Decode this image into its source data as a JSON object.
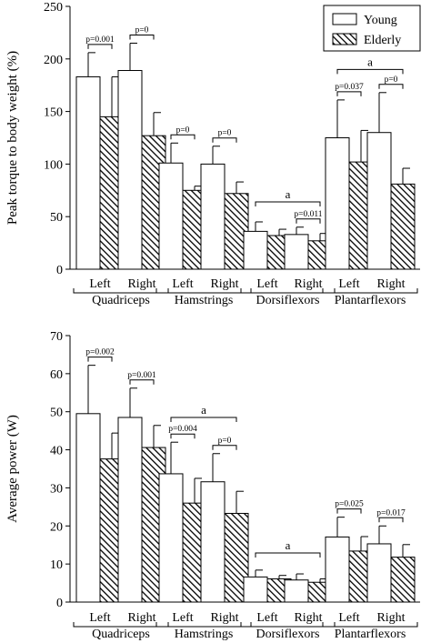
{
  "colors": {
    "young_fill": "#ffffff",
    "elderly_hatch": "#000000",
    "axis": "#000000"
  },
  "legend": {
    "items": [
      {
        "label": "Young",
        "style": "open"
      },
      {
        "label": "Elderly",
        "style": "hatched"
      }
    ],
    "placement": "top-right"
  },
  "chart_data": [
    {
      "type": "bar",
      "title": "",
      "ylabel": "Peak torque to body weight (%)",
      "xlabel": "",
      "ylim": [
        0,
        250
      ],
      "yticks": [
        0,
        50,
        100,
        150,
        200,
        250
      ],
      "groups": [
        {
          "name": "Quadriceps",
          "sides": [
            "Left",
            "Right"
          ]
        },
        {
          "name": "Hamstrings",
          "sides": [
            "Left",
            "Right"
          ]
        },
        {
          "name": "Dorsiflexors",
          "sides": [
            "Left",
            "Right"
          ]
        },
        {
          "name": "Plantarflexors",
          "sides": [
            "Left",
            "Right"
          ]
        }
      ],
      "series": [
        {
          "name": "Young",
          "values": [
            183,
            189,
            101,
            100,
            36,
            33,
            125,
            130
          ],
          "errors": [
            23,
            26,
            19,
            17,
            9,
            7,
            36,
            38
          ]
        },
        {
          "name": "Elderly",
          "values": [
            145,
            127,
            75,
            72,
            32,
            27,
            102,
            81
          ],
          "errors": [
            38,
            22,
            4,
            11,
            6,
            7,
            30,
            15
          ]
        }
      ],
      "pvalues": [
        {
          "index": 0,
          "label": "p=0.001"
        },
        {
          "index": 1,
          "label": "p=0"
        },
        {
          "index": 2,
          "label": "p=0"
        },
        {
          "index": 3,
          "label": "p=0"
        },
        {
          "index": 5,
          "label": "p=0.011"
        },
        {
          "index": 6,
          "label": "p=0.037"
        },
        {
          "index": 7,
          "label": "p=0"
        }
      ],
      "brackets": [
        {
          "label": "a",
          "from": 4,
          "to": 5,
          "y": 64
        },
        {
          "label": "a",
          "from": 6,
          "to": 7,
          "y": 190
        }
      ]
    },
    {
      "type": "bar",
      "title": "",
      "ylabel": "Average power (W)",
      "xlabel": "",
      "ylim": [
        0,
        70
      ],
      "yticks": [
        0,
        10,
        20,
        30,
        40,
        50,
        60,
        70
      ],
      "groups": [
        {
          "name": "Quadriceps",
          "sides": [
            "Left",
            "Right"
          ]
        },
        {
          "name": "Hamstrings",
          "sides": [
            "Left",
            "Right"
          ]
        },
        {
          "name": "Dorsiflexors",
          "sides": [
            "Left",
            "Right"
          ]
        },
        {
          "name": "Plantarflexors",
          "sides": [
            "Left",
            "Right"
          ]
        }
      ],
      "series": [
        {
          "name": "Young",
          "values": [
            49.5,
            48.5,
            33.7,
            31.6,
            6.6,
            5.8,
            17.1,
            15.3
          ],
          "errors": [
            12.7,
            7.7,
            8.3,
            7.4,
            1.8,
            1.6,
            5.2,
            4.7
          ]
        },
        {
          "name": "Elderly",
          "values": [
            37.6,
            40.6,
            26.0,
            23.3,
            6.1,
            5.2,
            13.4,
            11.8
          ],
          "errors": [
            6.8,
            5.8,
            6.5,
            5.8,
            0.9,
            0.9,
            3.8,
            3.3
          ]
        }
      ],
      "pvalues": [
        {
          "index": 0,
          "label": "p=0.002"
        },
        {
          "index": 1,
          "label": "p=0.001"
        },
        {
          "index": 2,
          "label": "p=0.004"
        },
        {
          "index": 3,
          "label": "p=0"
        },
        {
          "index": 6,
          "label": "p=0.025"
        },
        {
          "index": 7,
          "label": "p=0.017"
        }
      ],
      "brackets": [
        {
          "label": "a",
          "from": 2,
          "to": 3,
          "y": 48.5
        },
        {
          "label": "a",
          "from": 4,
          "to": 5,
          "y": 12.9
        }
      ]
    }
  ]
}
